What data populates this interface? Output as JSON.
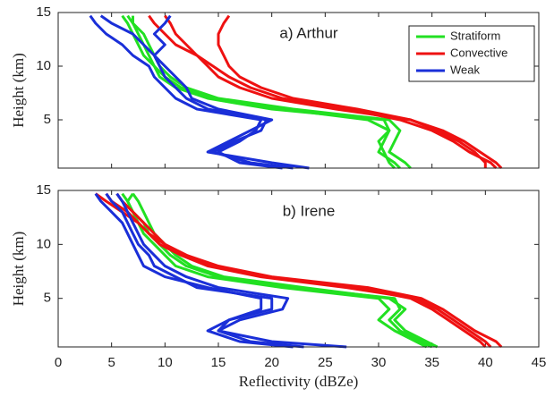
{
  "chart_data": [
    {
      "type": "line",
      "title": "a) Arthur",
      "ylabel": "Height (km)",
      "legend": "upper right",
      "xlim": [
        0,
        45
      ],
      "xticks": [
        0,
        5,
        10,
        15,
        20,
        25,
        30,
        35,
        40,
        45
      ],
      "xtick_labels": false,
      "ylim": [
        0.5,
        15
      ],
      "yticks": [
        5,
        10,
        15
      ],
      "y": [
        0.5,
        1,
        2,
        3,
        4,
        5,
        6,
        7,
        8,
        9,
        10,
        11,
        12,
        13,
        14,
        14.7
      ],
      "series": [
        {
          "name": "Stratiform",
          "color": "#22e022",
          "profiles": [
            [
              33,
              32.5,
              31,
              31.5,
              32,
              31,
              22,
              15,
              12,
              10.5,
              9.5,
              9,
              8.5,
              8,
              7,
              6.5
            ],
            [
              32,
              31.5,
              30,
              30.5,
              31,
              30.5,
              20,
              14,
              11,
              9.5,
              9,
              8.5,
              8,
              7.5,
              7,
              7
            ],
            [
              31.5,
              31,
              30.5,
              30,
              31,
              29,
              21,
              14.5,
              11.5,
              10,
              9,
              8,
              7.5,
              7,
              6.5,
              6
            ]
          ]
        },
        {
          "name": "Convective",
          "color": "#ee1111",
          "profiles": [
            [
              41.5,
              41,
              39.5,
              38,
              36,
              33,
              28,
              22,
              19,
              17,
              16,
              15.5,
              15,
              15,
              15.5,
              16
            ],
            [
              40,
              40,
              39,
              37.5,
              35.5,
              33,
              26,
              20,
              17,
              15,
              14,
              13,
              12,
              11,
              10.5,
              10
            ],
            [
              41,
              40.5,
              38.5,
              37,
              35,
              32,
              27,
              21,
              18,
              16,
              14.5,
              13,
              11,
              10,
              9,
              8.5
            ]
          ]
        },
        {
          "name": "Weak",
          "color": "#1a2fd8",
          "profiles": [
            [
              23.5,
              20,
              14,
              16,
              18,
              20,
              15,
              12.5,
              12,
              11,
              10,
              9,
              8,
              7,
              5,
              4
            ],
            [
              22,
              18,
              14.5,
              16.5,
              19,
              19.5,
              14,
              12,
              11,
              10,
              9.5,
              9,
              10,
              9,
              10,
              10.5
            ],
            [
              21,
              17,
              15,
              17,
              18.5,
              19,
              13,
              11,
              10,
              9,
              8.5,
              7,
              6,
              4.5,
              3.5,
              3
            ]
          ]
        }
      ]
    },
    {
      "type": "line",
      "title": "b) Irene",
      "ylabel": "Height (km)",
      "xlabel": "Reflectivity (dBZe)",
      "xlim": [
        0,
        45
      ],
      "xticks": [
        0,
        5,
        10,
        15,
        20,
        25,
        30,
        35,
        40,
        45
      ],
      "xtick_labels": true,
      "ylim": [
        0.5,
        15
      ],
      "yticks": [
        5,
        10,
        15
      ],
      "y": [
        0.5,
        1,
        2,
        3,
        4,
        5,
        6,
        7,
        8,
        9,
        10,
        11,
        12,
        13,
        14,
        14.7
      ],
      "series": [
        {
          "color": "#22e022",
          "profiles": [
            [
              35,
              34,
              32,
              31,
              32,
              31.5,
              22,
              15,
              12,
              10.5,
              9.5,
              8.5,
              8,
              7,
              6.5,
              6
            ],
            [
              34.5,
              33.5,
              31.5,
              30,
              31,
              30,
              21,
              14,
              11,
              10,
              9,
              8,
              7.5,
              7,
              6.5,
              7
            ],
            [
              35.5,
              34.5,
              32.5,
              31.5,
              32.5,
              31,
              23,
              15.5,
              12.5,
              11,
              10,
              9,
              8.5,
              8,
              7.5,
              7
            ]
          ]
        },
        {
          "color": "#ee1111",
          "profiles": [
            [
              41.5,
              41,
              39,
              37.5,
              36,
              34,
              29,
              20,
              15,
              12,
              10,
              8.5,
              7.5,
              6,
              4.5,
              3.5
            ],
            [
              40.5,
              40,
              38.5,
              37,
              35.5,
              33.5,
              27,
              19,
              14,
              11.5,
              9.5,
              8.5,
              7.5,
              6.5,
              5,
              4.5
            ],
            [
              40,
              39.5,
              38,
              36.5,
              35,
              33,
              28,
              19.5,
              14.5,
              12,
              10,
              9,
              8,
              7,
              6,
              5.5
            ]
          ]
        },
        {
          "color": "#1a2fd8",
          "profiles": [
            [
              27,
              20,
              15,
              16,
              19,
              19,
              14,
              10,
              8,
              7.5,
              7,
              6.5,
              6,
              5,
              4,
              3.5
            ],
            [
              22,
              17,
              14,
              16,
              20,
              20,
              13,
              11,
              9,
              8.5,
              7.5,
              7,
              6.5,
              6,
              5,
              4.5
            ],
            [
              23,
              18,
              15,
              17,
              21,
              21.5,
              15,
              12,
              10,
              9,
              8,
              7.5,
              7,
              6.5,
              6,
              5.5
            ]
          ]
        }
      ]
    }
  ]
}
